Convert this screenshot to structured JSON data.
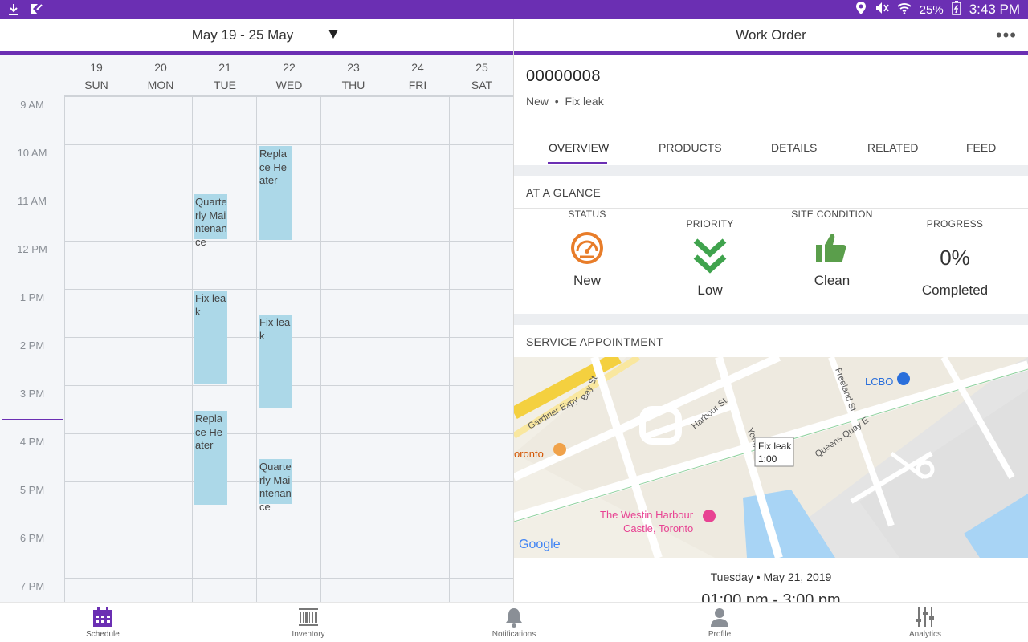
{
  "status_bar": {
    "battery": "25%",
    "time": "3:43 PM"
  },
  "calendar": {
    "range_label": "May 19 - 25 May",
    "days": [
      {
        "num": "19",
        "dow": "SUN"
      },
      {
        "num": "20",
        "dow": "MON"
      },
      {
        "num": "21",
        "dow": "TUE"
      },
      {
        "num": "22",
        "dow": "WED"
      },
      {
        "num": "23",
        "dow": "THU"
      },
      {
        "num": "24",
        "dow": "FRI"
      },
      {
        "num": "25",
        "dow": "SAT"
      }
    ],
    "times": [
      "9 AM",
      "10 AM",
      "11 AM",
      "12 PM",
      "1 PM",
      "2 PM",
      "3 PM",
      "4 PM",
      "5 PM",
      "6 PM",
      "7 PM"
    ],
    "events": [
      {
        "title": "Replace Heater",
        "day": "WED"
      },
      {
        "title": "Quarterly Maintenance",
        "day": "TUE"
      },
      {
        "title": "Fix leak",
        "day": "TUE"
      },
      {
        "title": "Fix leak",
        "day": "WED"
      },
      {
        "title": "Replace Heater",
        "day": "TUE"
      },
      {
        "title": "Quarterly Maintenance",
        "day": "WED"
      }
    ]
  },
  "work_order": {
    "header": "Work Order",
    "more": "•••",
    "number": "00000008",
    "status": "New",
    "subject": "Fix leak",
    "tabs": [
      "OVERVIEW",
      "PRODUCTS",
      "DETAILS",
      "RELATED",
      "FEED"
    ],
    "active_tab": "OVERVIEW",
    "glance_title": "AT A GLANCE",
    "glance": {
      "status_label": "STATUS",
      "status_value": "New",
      "priority_label": "PRIORITY",
      "priority_value": "Low",
      "site_label": "SITE CONDITION",
      "site_value": "Clean",
      "progress_label": "PROGRESS",
      "progress_value": "0%",
      "progress_caption": "Completed"
    },
    "appointment_title": "SERVICE APPOINTMENT",
    "map": {
      "streets": [
        "Bay St",
        "Gardiner Expy",
        "Harbour St",
        "Yonge",
        "Queens Quay E",
        "Freeland St"
      ],
      "pin_title": "Fix leak",
      "pin_time": "1:00",
      "poi_lcbo": "LCBO",
      "poi_toronto": "oronto",
      "poi_hotel_line1": "The Westin Harbour",
      "poi_hotel_line2": "Castle, Toronto",
      "google": "Google"
    },
    "appointment_date": "Tuesday • May 21, 2019",
    "appointment_time": "01:00 pm - 3:00 pm"
  },
  "nav": [
    {
      "label": "Schedule",
      "icon": "calendar-icon"
    },
    {
      "label": "Inventory",
      "icon": "barcode-icon"
    },
    {
      "label": "Notifications",
      "icon": "bell-icon"
    },
    {
      "label": "Profile",
      "icon": "person-icon"
    },
    {
      "label": "Analytics",
      "icon": "sliders-icon"
    }
  ],
  "colors": {
    "brand": "#6b2fb3",
    "event": "#acd8e8",
    "status_orange": "#e87d2a",
    "priority_green": "#3fa34d",
    "site_green": "#5a9e4b"
  }
}
